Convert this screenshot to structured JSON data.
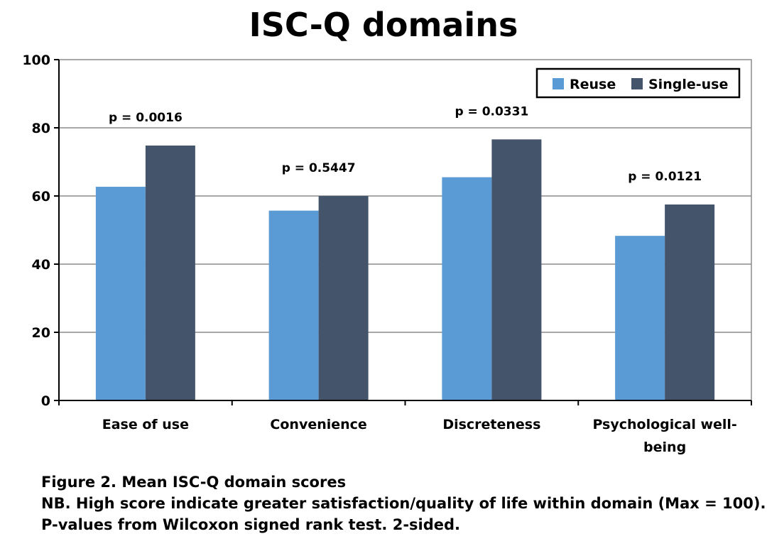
{
  "chart_data": {
    "type": "bar",
    "title": "ISC-Q domains",
    "categories": [
      "Ease of use",
      "Convenience",
      "Discreteness",
      "Psychological well-being"
    ],
    "category_lines": [
      [
        "Ease of use"
      ],
      [
        "Convenience"
      ],
      [
        "Discreteness"
      ],
      [
        "Psychological well-",
        "being"
      ]
    ],
    "series": [
      {
        "name": "Reuse",
        "values": [
          62.7,
          55.7,
          65.5,
          48.3
        ],
        "color": "#5b9bd5"
      },
      {
        "name": "Single-use",
        "values": [
          74.8,
          60.0,
          76.6,
          57.5
        ],
        "color": "#44546a"
      }
    ],
    "annotations": [
      "p = 0.0016",
      "p = 0.5447",
      "p = 0.0331",
      "p = 0.0121"
    ],
    "ylim": [
      0,
      100
    ],
    "yticks": [
      0,
      20,
      40,
      60,
      80,
      100
    ],
    "grid": true,
    "legend": "top-right",
    "xlabel": "",
    "ylabel": ""
  },
  "caption": {
    "line1": "Figure 2. Mean ISC-Q domain scores",
    "line2": "NB. High score indicate greater satisfaction/quality of life within domain (Max = 100).",
    "line3": "P-values from Wilcoxon signed rank test. 2-sided."
  }
}
